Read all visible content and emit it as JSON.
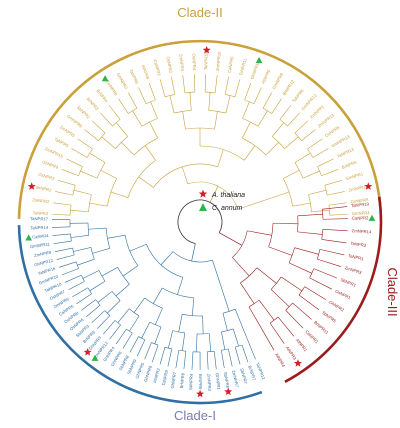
{
  "colors": {
    "clade_I": "#2f6fa3",
    "clade_II": "#c9a03a",
    "clade_III": "#9b1c1c",
    "clade_I_label": "#7a7ab8",
    "star": "#d81b2a",
    "triangle": "#2fb34a",
    "root": "#333333"
  },
  "clades": {
    "clade_I": "Clade-I",
    "clade_II": "Clade-II",
    "clade_III": "Clade-III"
  },
  "legend": [
    {
      "marker": "star-icon",
      "label": "A. thaliana"
    },
    {
      "marker": "triangle-icon",
      "label": "C. annum"
    }
  ],
  "clade_II_leaves": [
    "TaNPR2",
    "ZmNPR2",
    "BrNPR2",
    "OsNPR2",
    "GhNPR9",
    "ZmNPR15",
    "TaNPR5",
    "ZmNPR5",
    "GmNPR8",
    "SbNPR2",
    "BrNPR3",
    "BrNPR4",
    "ZmNPR8",
    "GmNPR2",
    "TaNPR8",
    "AtNPR6",
    "CaNPR3",
    "OsNPR3",
    "ZmNPR4",
    "OsNPR4",
    "TaNPR15",
    "ZmNPR10",
    "CaNPR5",
    "TaNPR11",
    "GhNPR10",
    "AtNPR5",
    "GmNPR9",
    "BrNPR12",
    "TaNPR6",
    "GmNPR12",
    "ZmNPR1",
    "ZmNPR13",
    "OsNPR5",
    "GmNPR13",
    "TaNPR13",
    "BrNPR5",
    "GmNPR1",
    "ZmNPR11",
    "GmNPR5",
    "GmNPR4"
  ],
  "clade_I_leaves": [
    "TaNPR17",
    "TaNPR14",
    "CaNPR4",
    "GmNPR11",
    "ZmNPR9",
    "GhNPR12",
    "TaNPR16",
    "GmNPR10",
    "TaNPR10",
    "OsNPR7",
    "ZmNPR6",
    "CaNPR6",
    "OsNPR8",
    "OsNPR6",
    "SbNPR3",
    "BrNPR6",
    "GhNPR3",
    "ZmNPR12",
    "GhNPR4",
    "GhNPR6",
    "SbNPR8",
    "SbNPR9",
    "GhNPR5",
    "GhNPR8",
    "AtNPR2",
    "TaNPR9",
    "GhNPR7",
    "BrNPR8",
    "SbNPR4",
    "BrNPR9",
    "ZmNPR3",
    "GhNPR1",
    "SbNPR6",
    "ZmNPR7",
    "SbNPR7",
    "BrNPR7",
    "TaNPR12"
  ],
  "clade_III_leaves": [
    "TaNPR19",
    "CaNPR2",
    "ZmNPR14",
    "TaNPR3",
    "TaNPR1",
    "ZmNPR3",
    "SbNPR1",
    "OsNPR1",
    "GhNPR2",
    "SbNPR5",
    "BrNPR11",
    "CaNPR1",
    "AtNPR1",
    "AtNPR3",
    "AtNPR4"
  ],
  "markers": [
    {
      "kind": "star",
      "clade": "clade_II",
      "leaf": 20
    },
    {
      "kind": "triangle",
      "clade": "clade_II",
      "leaf": 24
    },
    {
      "kind": "star",
      "clade": "clade_II",
      "leaf": 2
    },
    {
      "kind": "triangle",
      "clade": "clade_II",
      "leaf": 12
    },
    {
      "kind": "star",
      "clade": "clade_II",
      "leaf": 37
    },
    {
      "kind": "triangle",
      "clade": "clade_I",
      "leaf": 2
    },
    {
      "kind": "star",
      "clade": "clade_I",
      "leaf": 16
    },
    {
      "kind": "triangle",
      "clade": "clade_I",
      "leaf": 17
    },
    {
      "kind": "star",
      "clade": "clade_I",
      "leaf": 29
    },
    {
      "kind": "star",
      "clade": "clade_I",
      "leaf": 32
    },
    {
      "kind": "triangle",
      "clade": "clade_III",
      "leaf": 1
    },
    {
      "kind": "star",
      "clade": "clade_III",
      "leaf": 13
    }
  ]
}
